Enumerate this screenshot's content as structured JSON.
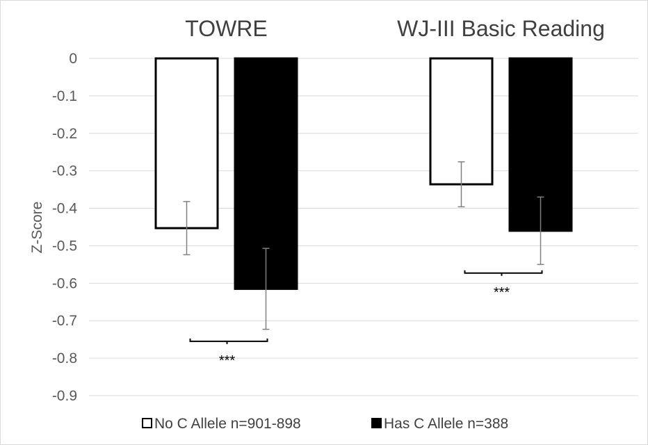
{
  "chart_data": {
    "type": "bar",
    "categories": [
      "TOWRE",
      "WJ-III Basic Reading"
    ],
    "series": [
      {
        "name": "No C Allele n=901-898",
        "values": [
          -0.453,
          -0.336
        ],
        "error": [
          0.071,
          0.06
        ],
        "fill": "#ffffff",
        "stroke": "#000000"
      },
      {
        "name": "Has C Allele n=388",
        "values": [
          -0.615,
          -0.46
        ],
        "error": [
          0.108,
          0.09
        ],
        "fill": "#000000",
        "stroke": "#000000"
      }
    ],
    "ylabel": "Z-Score",
    "ylim": [
      -0.9,
      0
    ],
    "yticks": [
      "0",
      "-0.1",
      "-0.2",
      "-0.3",
      "-0.4",
      "-0.5",
      "-0.6",
      "-0.7",
      "-0.8",
      "-0.9"
    ],
    "significance": [
      {
        "category": "TOWRE",
        "label": "***",
        "y": -0.755
      },
      {
        "category": "WJ-III Basic Reading",
        "label": "***",
        "y": -0.573
      }
    ],
    "grid": true,
    "legend_position": "bottom"
  }
}
